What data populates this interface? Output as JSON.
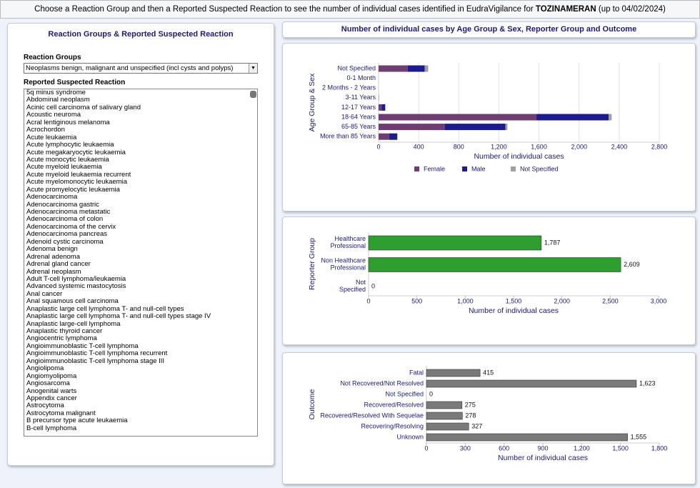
{
  "header": {
    "prefix": "Choose a Reaction Group and then a Reported Suspected Reaction to see the number of individual cases identified in EudraVigilance for",
    "product": "TOZINAMERAN",
    "suffix": "(up to 04/02/2024)"
  },
  "left_panel": {
    "title": "Reaction Groups & Reported Suspected Reaction",
    "groups_label": "Reaction Groups",
    "selected_group": "Neoplasms benign, malignant and unspecified (incl cysts and polyps)",
    "reactions_label": "Reported Suspected Reaction",
    "reactions": [
      "5q minus syndrome",
      "Abdominal neoplasm",
      "Acinic cell carcinoma of salivary gland",
      "Acoustic neuroma",
      "Acral lentiginous melanoma",
      "Acrochordon",
      "Acute leukaemia",
      "Acute lymphocytic leukaemia",
      "Acute megakaryocytic leukaemia",
      "Acute monocytic leukaemia",
      "Acute myeloid leukaemia",
      "Acute myeloid leukaemia recurrent",
      "Acute myelomonocytic leukaemia",
      "Acute promyelocytic leukaemia",
      "Adenocarcinoma",
      "Adenocarcinoma gastric",
      "Adenocarcinoma metastatic",
      "Adenocarcinoma of colon",
      "Adenocarcinoma of the cervix",
      "Adenocarcinoma pancreas",
      "Adenoid cystic carcinoma",
      "Adenoma benign",
      "Adrenal adenoma",
      "Adrenal gland cancer",
      "Adrenal neoplasm",
      "Adult T-cell lymphoma/leukaemia",
      "Advanced systemic mastocytosis",
      "Anal cancer",
      "Anal squamous cell carcinoma",
      "Anaplastic large cell lymphoma T- and null-cell types",
      "Anaplastic large cell lymphoma T- and null-cell types stage IV",
      "Anaplastic large-cell lymphoma",
      "Anaplastic thyroid cancer",
      "Angiocentric lymphoma",
      "Angioimmunoblastic T-cell lymphoma",
      "Angioimmunoblastic T-cell lymphoma recurrent",
      "Angioimmunoblastic T-cell lymphoma stage III",
      "Angiolipoma",
      "Angiomyolipoma",
      "Angiosarcoma",
      "Anogenital warts",
      "Appendix cancer",
      "Astrocytoma",
      "Astrocytoma malignant",
      "B precursor type acute leukaemia",
      "B-cell lymphoma"
    ]
  },
  "right_title": "Number of individual cases by Age Group & Sex, Reporter Group and Outcome",
  "chart_data": [
    {
      "type": "bar",
      "orientation": "horizontal",
      "stacked": true,
      "y_label": "Age Group & Sex",
      "x_label": "Number of individual cases",
      "categories": [
        "Not Specified",
        "0-1 Month",
        "2 Months - 2 Years",
        "3-11 Years",
        "12-17 Years",
        "18-64 Years",
        "65-85 Years",
        "More than 85 Years"
      ],
      "series": [
        {
          "name": "Female",
          "color": "#6f3d72",
          "values": [
            290,
            0,
            0,
            1,
            30,
            1575,
            660,
            105
          ]
        },
        {
          "name": "Male",
          "color": "#1c1c8e",
          "values": [
            170,
            0,
            0,
            1,
            35,
            720,
            605,
            80
          ]
        },
        {
          "name": "Not Specified",
          "color": "#a0a0a0",
          "values": [
            35,
            0,
            0,
            0,
            5,
            30,
            20,
            5
          ]
        }
      ],
      "xlim": [
        0,
        2800
      ],
      "xticks": [
        0,
        400,
        800,
        {
          "value": 1200,
          "label": "1,200"
        },
        {
          "value": 1600,
          "label": "1,600"
        },
        {
          "value": 2000,
          "label": "2,000"
        },
        {
          "value": 2400,
          "label": "2,400"
        },
        {
          "value": 2800,
          "label": "2,800"
        }
      ],
      "grid": true,
      "legend": "bottom"
    },
    {
      "type": "bar",
      "orientation": "horizontal",
      "y_label": "Reporter Group",
      "x_label": "Number of individual cases",
      "categories": [
        "Healthcare Professional",
        "Non Healthcare Professional",
        "Not Specified"
      ],
      "values": [
        1787,
        2609,
        0
      ],
      "value_labels": [
        "1,787",
        "2,609",
        "0"
      ],
      "color": "#2e9e2e",
      "xlim": [
        0,
        3000
      ],
      "xticks": [
        0,
        500,
        {
          "value": 1000,
          "label": "1,000"
        },
        {
          "value": 1500,
          "label": "1,500"
        },
        {
          "value": 2000,
          "label": "2,000"
        },
        {
          "value": 2500,
          "label": "2,500"
        },
        {
          "value": 3000,
          "label": "3,000"
        }
      ],
      "grid": false
    },
    {
      "type": "bar",
      "orientation": "horizontal",
      "y_label": "Outcome",
      "x_label": "Number of individual cases",
      "categories": [
        "Fatal",
        "Not Recovered/Not Resolved",
        "Not Specified",
        "Recovered/Resolved",
        "Recovered/Resolved With Sequelae",
        "Recovering/Resolving",
        "Unknown"
      ],
      "values": [
        415,
        1623,
        0,
        275,
        278,
        327,
        1555
      ],
      "value_labels": [
        "415",
        "1,623",
        "0",
        "275",
        "278",
        "327",
        "1,555"
      ],
      "color": "#7a7a7a",
      "xlim": [
        0,
        1800
      ],
      "xticks": [
        0,
        300,
        600,
        900,
        {
          "value": 1200,
          "label": "1,200"
        },
        {
          "value": 1500,
          "label": "1,500"
        },
        {
          "value": 1800,
          "label": "1,800"
        }
      ],
      "grid": false
    }
  ]
}
